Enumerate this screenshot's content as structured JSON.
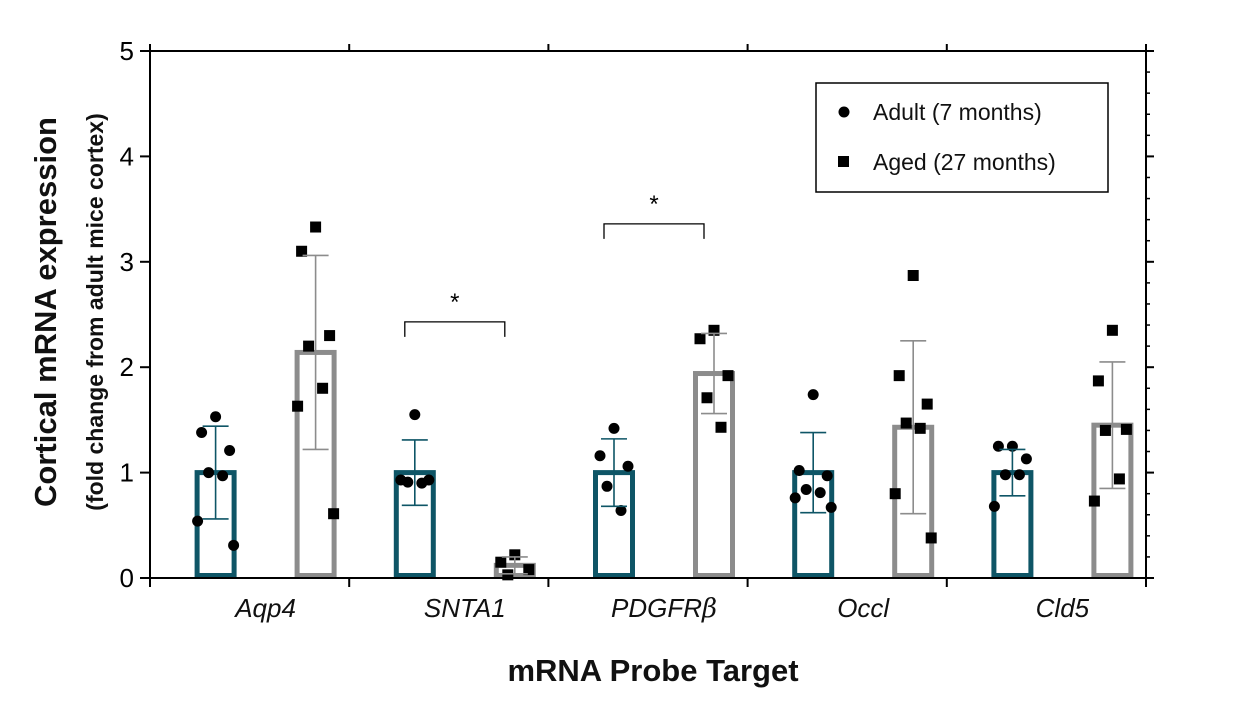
{
  "chart_data": {
    "type": "bar",
    "ylabel": "Cortical mRNA expression",
    "ylabel_sub": "(fold change from adult mice cortex)",
    "xlabel": "mRNA Probe Target",
    "ylim": [
      0,
      5
    ],
    "yticks": [
      "0",
      "1",
      "2",
      "3",
      "4",
      "5"
    ],
    "categories": [
      {
        "main": "Aqp4",
        "sub": ""
      },
      {
        "main": "SNTA1",
        "sub": ""
      },
      {
        "main": "PDGFR",
        "sub": "β"
      },
      {
        "main": "Occl",
        "sub": ""
      },
      {
        "main": "Cld5",
        "sub": ""
      }
    ],
    "series": [
      {
        "name": "Adult (7 months)",
        "color": "#0e5566",
        "marker": "circle",
        "values": [
          1.0,
          1.0,
          1.0,
          1.0,
          1.0
        ],
        "sd": [
          0.44,
          0.31,
          0.32,
          0.38,
          0.22
        ],
        "points": [
          [
            1.53,
            1.38,
            1.21,
            1.0,
            0.97,
            0.54,
            0.31
          ],
          [
            1.55,
            0.93,
            0.93,
            0.91,
            0.9
          ],
          [
            1.42,
            1.16,
            1.06,
            0.87,
            0.64
          ],
          [
            1.74,
            1.02,
            0.97,
            0.84,
            0.81,
            0.76,
            0.67
          ],
          [
            1.25,
            1.25,
            1.13,
            0.98,
            0.98,
            0.68
          ]
        ]
      },
      {
        "name": "Aged (27 months)",
        "color": "#8c8c8c",
        "marker": "square",
        "values": [
          2.14,
          0.12,
          1.94,
          1.43,
          1.45
        ],
        "sd": [
          0.92,
          0.08,
          0.38,
          0.82,
          0.6
        ],
        "points": [
          [
            3.33,
            3.1,
            2.3,
            2.2,
            1.8,
            1.63,
            0.61
          ],
          [
            0.22,
            0.15,
            0.08,
            0.03
          ],
          [
            2.35,
            2.27,
            1.92,
            1.71,
            1.43
          ],
          [
            2.87,
            1.92,
            1.65,
            1.47,
            1.42,
            0.8,
            0.38
          ],
          [
            2.35,
            1.87,
            1.41,
            1.4,
            0.94,
            0.73
          ]
        ]
      }
    ],
    "significance": [
      {
        "category": 1,
        "label": "*",
        "y": 2.43
      },
      {
        "category": 2,
        "label": "*",
        "y": 3.36
      }
    ],
    "legend": {
      "position": "top-right"
    }
  }
}
